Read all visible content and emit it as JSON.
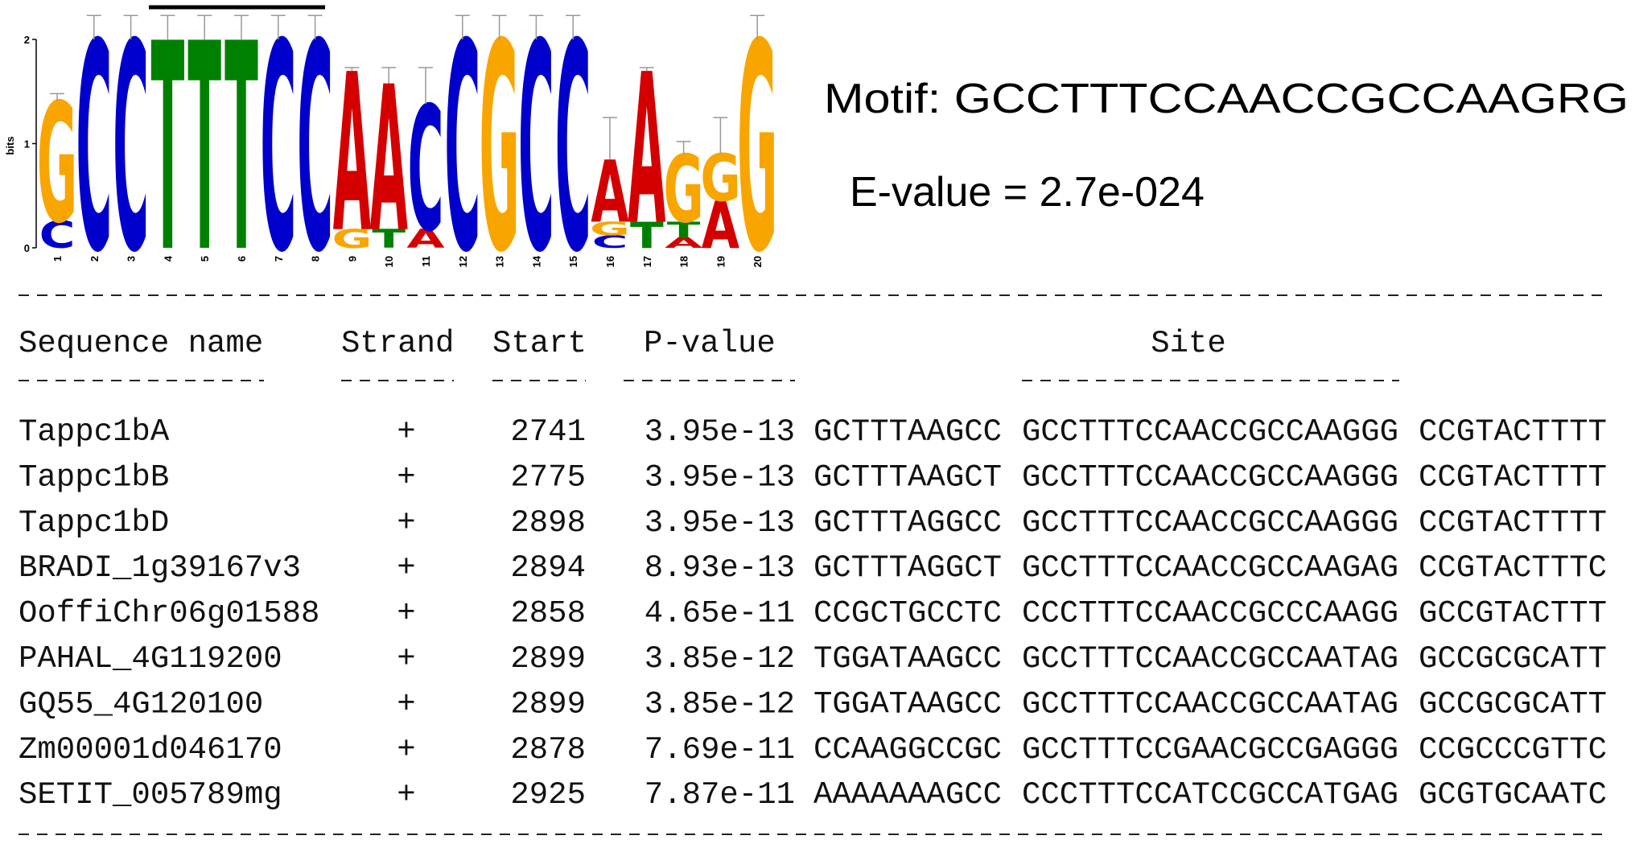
{
  "logo": {
    "type": "sequence-logo",
    "y_label": "bits",
    "ylim": [
      0,
      2
    ],
    "yticks": [
      0,
      1,
      2
    ],
    "colors": {
      "A": "#d40000",
      "C": "#0000cc",
      "G": "#f9a500",
      "T": "#008000"
    },
    "positions": [
      {
        "label": "1",
        "letters": [
          {
            "letter": "C",
            "bits": 0.26
          },
          {
            "letter": "G",
            "bits": 1.15
          }
        ],
        "error": 1.48
      },
      {
        "label": "2",
        "letters": [
          {
            "letter": "C",
            "bits": 2.0
          }
        ],
        "error": 2.23
      },
      {
        "label": "3",
        "letters": [
          {
            "letter": "C",
            "bits": 2.0
          }
        ],
        "error": 2.23
      },
      {
        "label": "4",
        "letters": [
          {
            "letter": "T",
            "bits": 2.0
          }
        ],
        "error": 2.23
      },
      {
        "label": "5",
        "letters": [
          {
            "letter": "T",
            "bits": 2.0
          }
        ],
        "error": 2.23
      },
      {
        "label": "6",
        "letters": [
          {
            "letter": "T",
            "bits": 2.0
          }
        ],
        "error": 2.23
      },
      {
        "label": "7",
        "letters": [
          {
            "letter": "C",
            "bits": 2.0
          }
        ],
        "error": 2.23
      },
      {
        "label": "8",
        "letters": [
          {
            "letter": "C",
            "bits": 2.0
          }
        ],
        "error": 2.23
      },
      {
        "label": "9",
        "letters": [
          {
            "letter": "G",
            "bits": 0.18
          },
          {
            "letter": "A",
            "bits": 1.52
          }
        ],
        "error": 1.73
      },
      {
        "label": "10",
        "letters": [
          {
            "letter": "T",
            "bits": 0.18
          },
          {
            "letter": "A",
            "bits": 1.4
          }
        ],
        "error": 1.73
      },
      {
        "label": "11",
        "letters": [
          {
            "letter": "A",
            "bits": 0.18
          },
          {
            "letter": "C",
            "bits": 1.2
          }
        ],
        "error": 1.73
      },
      {
        "label": "12",
        "letters": [
          {
            "letter": "C",
            "bits": 2.0
          }
        ],
        "error": 2.23
      },
      {
        "label": "13",
        "letters": [
          {
            "letter": "G",
            "bits": 2.0
          }
        ],
        "error": 2.23
      },
      {
        "label": "14",
        "letters": [
          {
            "letter": "C",
            "bits": 2.0
          }
        ],
        "error": 2.23
      },
      {
        "label": "15",
        "letters": [
          {
            "letter": "C",
            "bits": 2.0
          }
        ],
        "error": 2.23
      },
      {
        "label": "16",
        "letters": [
          {
            "letter": "C",
            "bits": 0.12
          },
          {
            "letter": "G",
            "bits": 0.13
          },
          {
            "letter": "A",
            "bits": 0.6
          }
        ],
        "error": 1.25
      },
      {
        "label": "17",
        "letters": [
          {
            "letter": "T",
            "bits": 0.25
          },
          {
            "letter": "A",
            "bits": 1.45
          }
        ],
        "error": 1.73
      },
      {
        "label": "18",
        "letters": [
          {
            "letter": "A",
            "bits": 0.1
          },
          {
            "letter": "T",
            "bits": 0.15
          },
          {
            "letter": "G",
            "bits": 0.65
          }
        ],
        "error": 1.02
      },
      {
        "label": "19",
        "letters": [
          {
            "letter": "A",
            "bits": 0.45
          },
          {
            "letter": "G",
            "bits": 0.45
          }
        ],
        "error": 1.25
      },
      {
        "label": "20",
        "letters": [
          {
            "letter": "G",
            "bits": 2.0
          }
        ],
        "error": 2.23
      }
    ]
  },
  "motif": "Motif: GCCTTTCCAACCGCCAAGRG",
  "evalue": "E-value = 2.7e-024",
  "table": {
    "columns": [
      "Sequence name",
      "Strand",
      "Start",
      "P-value",
      "Site"
    ],
    "rows": [
      [
        "Tappc1bA",
        "+",
        2741,
        "3.95e-13",
        "GCTTTAAGCC",
        "GCCTTTCCAACCGCCAAGGG",
        "CCGTACTTTT"
      ],
      [
        "Tappc1bB",
        "+",
        2775,
        "3.95e-13",
        "GCTTTAAGCT",
        "GCCTTTCCAACCGCCAAGGG",
        "CCGTACTTTT"
      ],
      [
        "Tappc1bD",
        "+",
        2898,
        "3.95e-13",
        "GCTTTAGGCC",
        "GCCTTTCCAACCGCCAAGGG",
        "CCGTACTTTT"
      ],
      [
        "BRADI_1g39167v3",
        "+",
        2894,
        "8.93e-13",
        "GCTTTAGGCT",
        "GCCTTTCCAACCGCCAAGAG",
        "CCGTACTTTC"
      ],
      [
        "OoffiChr06g01588",
        "+",
        2858,
        "4.65e-11",
        "CCGCTGCCTC",
        "CCCTTTCCAACCGCCCAAGG",
        "GCCGTACTTT"
      ],
      [
        "PAHAL_4G119200",
        "+",
        2899,
        "3.85e-12",
        "TGGATAAGCC",
        "GCCTTTCCAACCGCCAATAG",
        "GCCGCGCATT"
      ],
      [
        "GQ55_4G120100",
        "+",
        2899,
        "3.85e-12",
        "TGGATAAGCC",
        "GCCTTTCCAACCGCCAATAG",
        "GCCGCGCATT"
      ],
      [
        "Zm00001d046170",
        "+",
        2878,
        "7.69e-11",
        "CCAAGGCCGC",
        "GCCTTTCCGAACGCCGAGGG",
        "CCGCCCGTTC"
      ],
      [
        "SETIT_005789mg",
        "+",
        2925,
        "7.87e-11",
        "AAAAAAAGCC",
        "CCCTTTCCATCCGCCATGAG",
        "GCGTGCAATC"
      ]
    ]
  }
}
